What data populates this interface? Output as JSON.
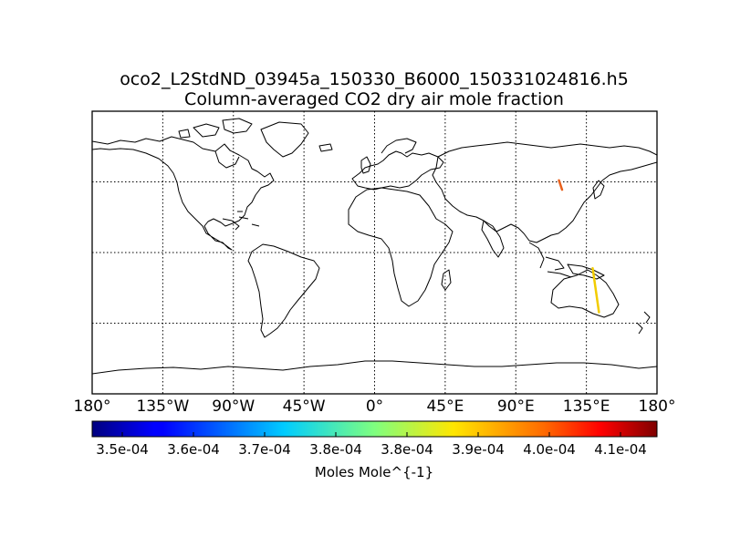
{
  "title": {
    "line1": "oco2_L2StdND_03945a_150330_B6000_150331024816.h5",
    "line2": "Column-averaged CO2 dry air mole fraction"
  },
  "lon_labels": [
    "180°",
    "135°W",
    "90°W",
    "45°W",
    "0°",
    "45°E",
    "90°E",
    "135°E",
    "180°"
  ],
  "colorbar": {
    "ticks": [
      "3.5e-04",
      "3.6e-04",
      "3.7e-04",
      "3.8e-04",
      "3.8e-04",
      "3.9e-04",
      "4.0e-04",
      "4.1e-04"
    ],
    "label": "Moles Mole^{-1}",
    "colormap": "jet"
  },
  "chart_data": {
    "type": "scatter",
    "projection": "cylindrical",
    "xlim": [
      -180,
      180
    ],
    "ylim": [
      -90,
      90
    ],
    "grid": true,
    "gridlines_lon": [
      -135,
      -90,
      -45,
      0,
      45,
      90,
      135
    ],
    "gridlines_lat": [
      -45,
      0,
      45
    ],
    "series": [
      {
        "points": [
          [
            117.5,
            46.0
          ],
          [
            119.5,
            40.0
          ]
        ],
        "color": "#e8601c"
      },
      {
        "points": [
          [
            139.0,
            -10.0
          ],
          [
            143.0,
            -38.0
          ]
        ],
        "color": "#f2cc00"
      }
    ]
  }
}
